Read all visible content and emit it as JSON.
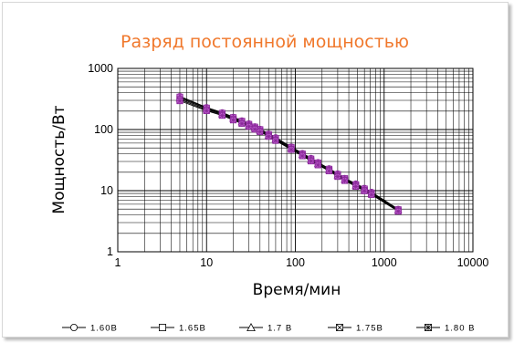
{
  "chart_data": {
    "type": "line",
    "title": "Разряд постоянной мощностью",
    "xlabel": "Время/мин",
    "ylabel": "Мощность/Вт",
    "x_scale": "log",
    "y_scale": "log",
    "xlim": [
      1,
      10000
    ],
    "ylim": [
      1,
      1000
    ],
    "x_ticks": [
      "1",
      "10",
      "100",
      "1000",
      "10000"
    ],
    "y_ticks": [
      "1",
      "10",
      "100",
      "1000"
    ],
    "grid": true,
    "legend_position": "bottom",
    "x": [
      5,
      10,
      15,
      20,
      25,
      30,
      35,
      40,
      50,
      60,
      90,
      120,
      150,
      180,
      240,
      300,
      360,
      480,
      600,
      720,
      1440
    ],
    "series": [
      {
        "name": "1.60B",
        "marker": "circle",
        "values": [
          350,
          230,
          190,
          160,
          140,
          125,
          112,
          102,
          85,
          74,
          52,
          41,
          34,
          29,
          23,
          19,
          16,
          13,
          11,
          9.5,
          5
        ]
      },
      {
        "name": "1.65B",
        "marker": "square",
        "values": [
          340,
          225,
          185,
          157,
          137,
          122,
          110,
          100,
          83,
          72,
          51,
          40,
          33,
          28.5,
          22.5,
          18.5,
          15.8,
          12.6,
          10.7,
          9.2,
          4.9
        ]
      },
      {
        "name": "1.7 B",
        "marker": "triangle",
        "values": [
          325,
          218,
          180,
          152,
          133,
          118,
          107,
          97,
          81,
          70,
          49.5,
          39,
          32,
          27.5,
          22,
          18,
          15.3,
          12.3,
          10.4,
          9,
          4.8
        ]
      },
      {
        "name": "1.75B",
        "marker": "square-x",
        "values": [
          310,
          210,
          175,
          148,
          129,
          115,
          104,
          94,
          79,
          68,
          48,
          38,
          31,
          27,
          21.5,
          17.5,
          15,
          12,
          10.1,
          8.8,
          4.7
        ]
      },
      {
        "name": "1.80 B",
        "marker": "star",
        "values": [
          295,
          203,
          170,
          143,
          125,
          112,
          101,
          92,
          77,
          66,
          47,
          37,
          30.5,
          26.3,
          21,
          17,
          14.6,
          11.7,
          9.9,
          8.6,
          4.6
        ]
      }
    ],
    "colors": {
      "title": "#f0782c",
      "line": "#000000",
      "grid": "#000000",
      "marker_fill": "#c060d0",
      "marker_edge": "#8a2a9a"
    }
  }
}
